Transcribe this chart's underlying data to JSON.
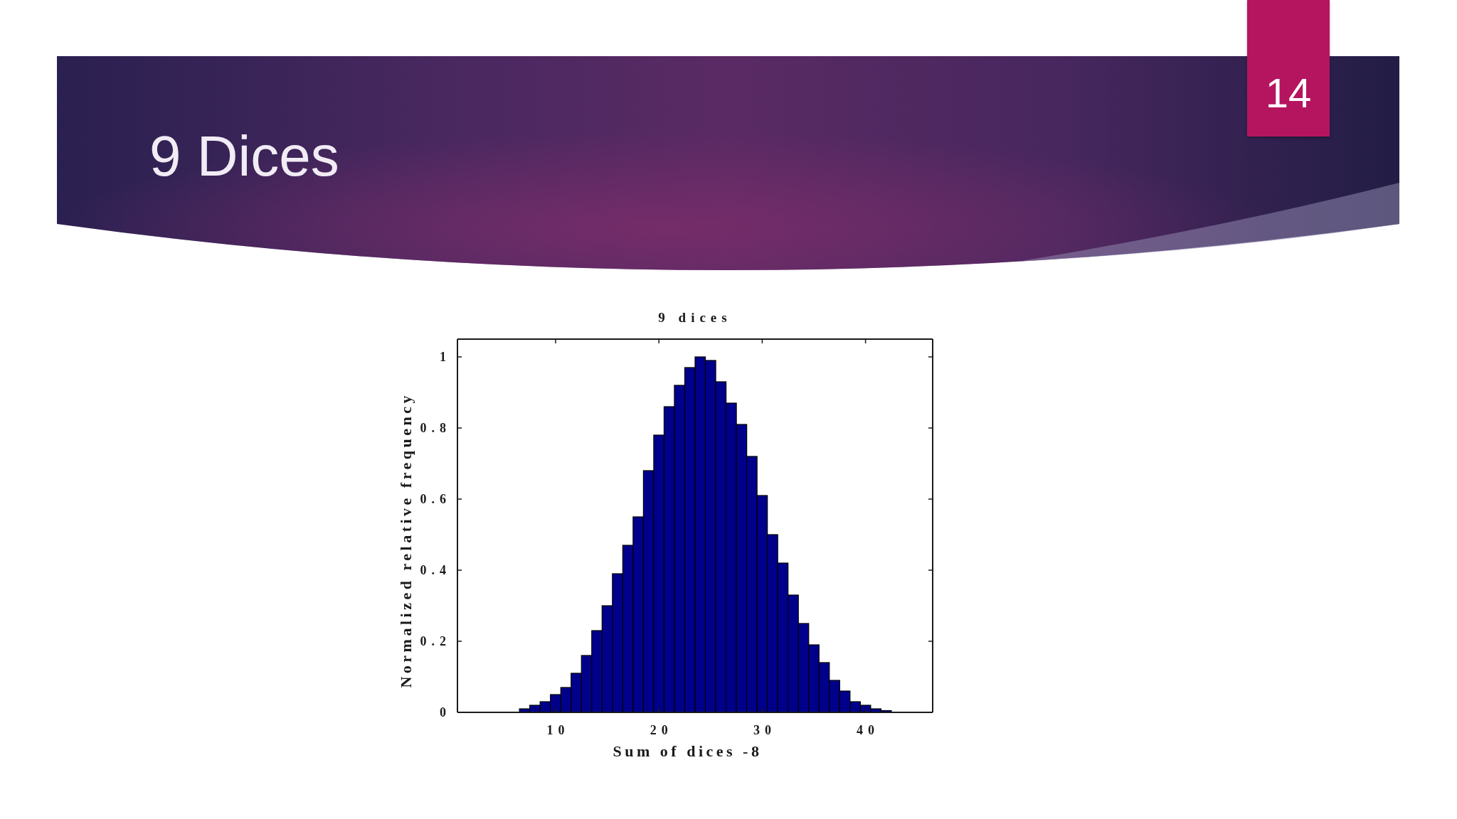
{
  "chart_data": {
    "type": "histogram",
    "title": "9 Dices",
    "subtitle": "9 dices",
    "xlabel": "Sum of dices -8",
    "ylabel": "Normalized relative frequency",
    "annotations": [
      "14"
    ],
    "bins": [
      6.5,
      7.5,
      8.5,
      9.5,
      10.5,
      11.5,
      12.5,
      13.5,
      14.5,
      15.5,
      16.5,
      17.5,
      18.5,
      19.5,
      20.5,
      21.5,
      22.5,
      23.5,
      24.5,
      25.5,
      26.5,
      27.5,
      28.5,
      29.5,
      30.5,
      31.5,
      32.5,
      33.5,
      34.5,
      35.5,
      36.5,
      37.5,
      38.5,
      39.5,
      40.5,
      41.5,
      42.5
    ],
    "values": [
      0.01,
      0.02,
      0.03,
      0.05,
      0.07,
      0.11,
      0.16,
      0.23,
      0.3,
      0.39,
      0.47,
      0.55,
      0.68,
      0.78,
      0.86,
      0.92,
      0.97,
      1,
      0.99,
      0.93,
      0.87,
      0.81,
      0.72,
      0.61,
      0.5,
      0.42,
      0.33,
      0.25,
      0.19,
      0.14,
      0.09,
      0.06,
      0.03,
      0.02,
      0.01,
      0.005
    ],
    "color": "#00008b",
    "xlim": [
      0.5,
      46.5
    ],
    "xticks": [
      10,
      20,
      30,
      40
    ],
    "ylim": [
      0,
      1.05
    ],
    "yticks": [
      0,
      0.2,
      0.4,
      0.6,
      0.8,
      1
    ]
  }
}
